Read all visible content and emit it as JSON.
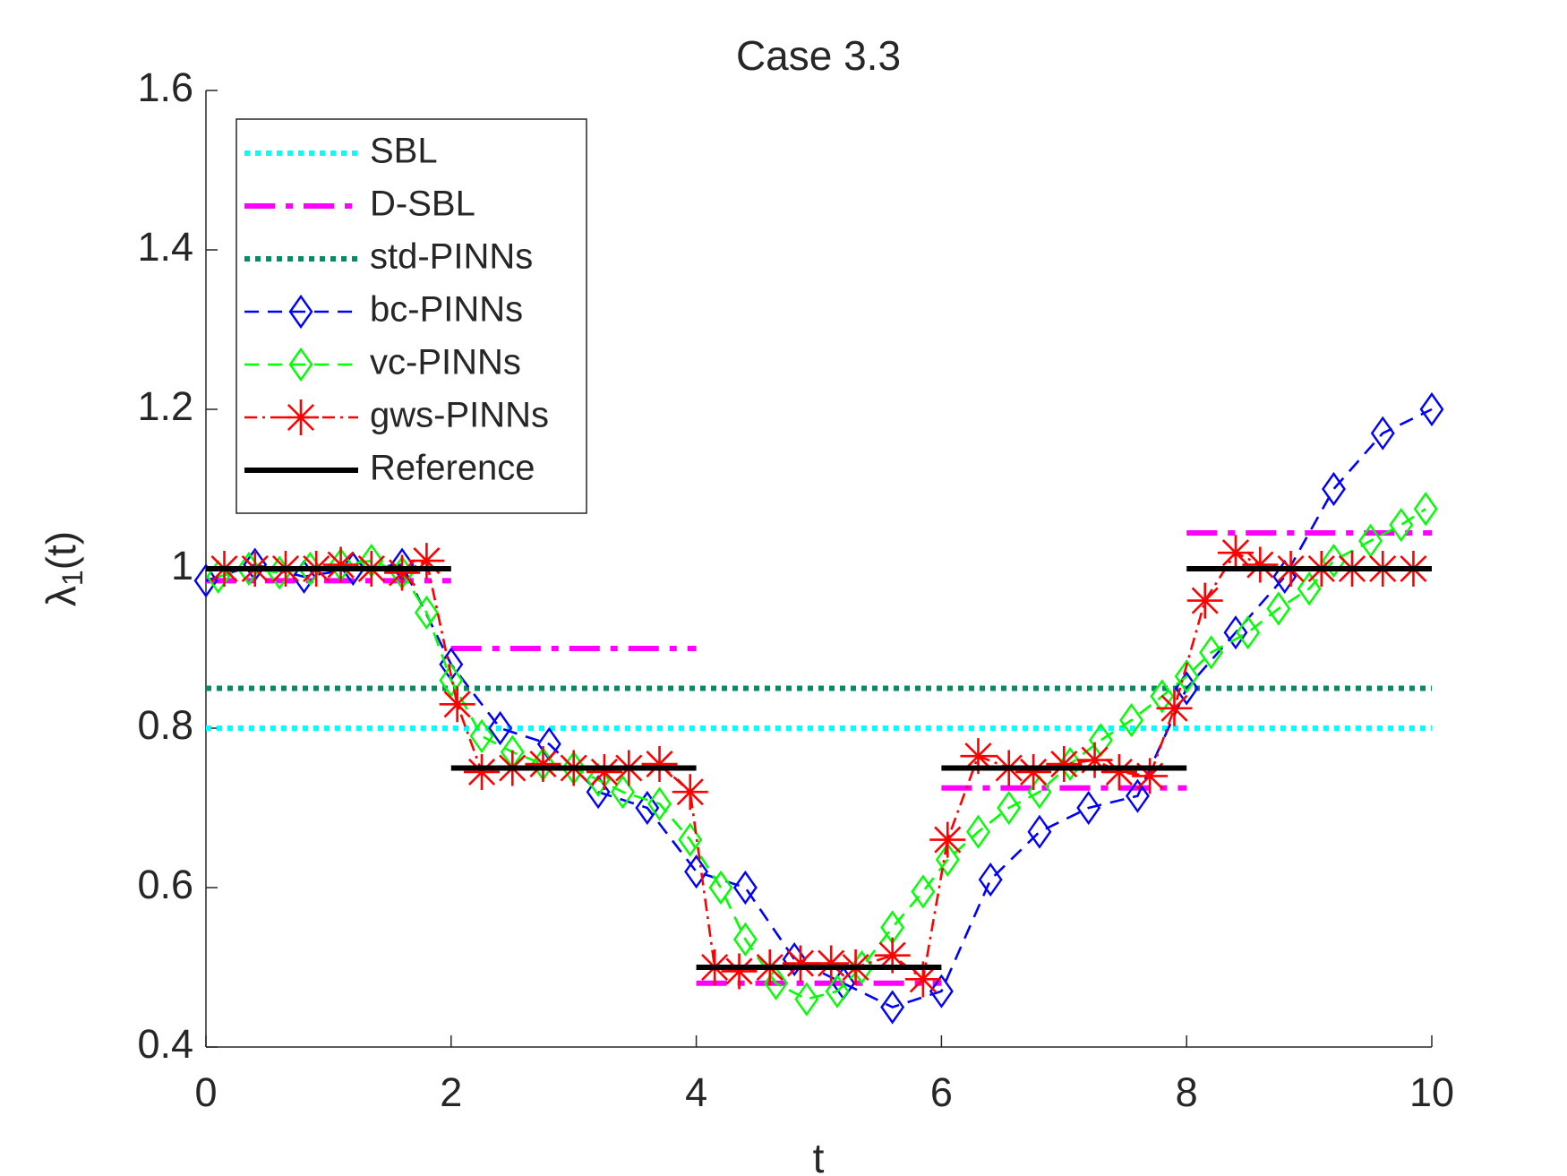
{
  "chart_data": {
    "type": "line",
    "title": "Case 3.3",
    "xlabel": "t",
    "ylabel": "λ1(t)",
    "xlim": [
      0,
      10
    ],
    "xticks": [
      0,
      2,
      4,
      6,
      8,
      10
    ],
    "ylim": [
      0.4,
      1.6
    ],
    "yticks": [
      0.4,
      0.6,
      0.8,
      1,
      1.2,
      1.4,
      1.6
    ],
    "grid": false,
    "legend_position": "upper left",
    "series": [
      {
        "name": "SBL",
        "color": "#00ffff",
        "linestyle": "dotted",
        "linewidth": "thick",
        "marker": "none",
        "x": [
          0,
          10
        ],
        "values": [
          0.8,
          0.8
        ]
      },
      {
        "name": "D-SBL",
        "color": "#ff00ff",
        "linestyle": "dashdot",
        "linewidth": "thick",
        "marker": "none",
        "x": [
          0,
          2,
          2,
          2,
          4,
          4,
          4,
          6,
          6,
          6,
          8,
          8,
          8,
          10
        ],
        "values": [
          0.985,
          0.985,
          null,
          0.9,
          0.9,
          null,
          0.48,
          0.48,
          null,
          0.725,
          0.725,
          null,
          1.045,
          1.045
        ]
      },
      {
        "name": "std-PINNs",
        "color": "#0a8a64",
        "linestyle": "dotted",
        "linewidth": "thick",
        "marker": "none",
        "x": [
          0,
          10
        ],
        "values": [
          0.85,
          0.85
        ]
      },
      {
        "name": "bc-PINNs",
        "color": "#0000ff",
        "linestyle": "dashed",
        "linewidth": "thin",
        "marker": "diamond",
        "x": [
          0,
          0.4,
          0.8,
          1.2,
          1.6,
          2.0,
          2.4,
          2.8,
          3.2,
          3.6,
          4.0,
          4.4,
          4.8,
          5.2,
          5.6,
          6.0,
          6.4,
          6.8,
          7.2,
          7.6,
          8.0,
          8.4,
          8.8,
          9.2,
          9.6,
          10.0
        ],
        "values": [
          0.985,
          1.005,
          0.99,
          1.0,
          1.005,
          0.88,
          0.8,
          0.78,
          0.72,
          0.7,
          0.62,
          0.6,
          0.51,
          0.48,
          0.45,
          0.47,
          0.61,
          0.67,
          0.7,
          0.715,
          0.85,
          0.92,
          0.99,
          1.1,
          1.17,
          1.2
        ]
      },
      {
        "name": "vc-PINNs",
        "color": "#00ff00",
        "linestyle": "dashed",
        "linewidth": "thin",
        "marker": "diamond",
        "x": [
          0.1,
          0.35,
          0.6,
          0.85,
          1.1,
          1.35,
          1.6,
          1.8,
          2.0,
          2.25,
          2.5,
          2.75,
          3.0,
          3.2,
          3.4,
          3.7,
          3.95,
          4.2,
          4.4,
          4.65,
          4.9,
          5.15,
          5.35,
          5.6,
          5.85,
          6.05,
          6.3,
          6.55,
          6.8,
          7.05,
          7.3,
          7.55,
          7.8,
          8.0,
          8.2,
          8.5,
          8.75,
          9.0,
          9.2,
          9.5,
          9.75,
          9.95
        ],
        "values": [
          0.99,
          1.0,
          0.995,
          1.0,
          1.005,
          1.01,
          0.995,
          0.945,
          0.86,
          0.79,
          0.77,
          0.755,
          0.75,
          0.735,
          0.72,
          0.705,
          0.66,
          0.6,
          0.535,
          0.48,
          0.46,
          0.47,
          0.5,
          0.55,
          0.595,
          0.635,
          0.67,
          0.7,
          0.72,
          0.755,
          0.785,
          0.81,
          0.84,
          0.865,
          0.895,
          0.92,
          0.95,
          0.975,
          1.01,
          1.035,
          1.055,
          1.075
        ]
      },
      {
        "name": "gws-PINNs",
        "color": "#ff0000",
        "linestyle": "dashdot",
        "linewidth": "thin",
        "marker": "asterisk",
        "x": [
          0.15,
          0.4,
          0.65,
          0.9,
          1.1,
          1.35,
          1.6,
          1.8,
          2.05,
          2.25,
          2.5,
          2.75,
          3.0,
          3.25,
          3.45,
          3.7,
          3.95,
          4.15,
          4.35,
          4.6,
          4.85,
          5.1,
          5.3,
          5.6,
          5.85,
          6.05,
          6.3,
          6.55,
          6.75,
          7.0,
          7.25,
          7.45,
          7.7,
          7.9,
          8.15,
          8.4,
          8.6,
          8.85,
          9.1,
          9.35,
          9.6,
          9.85
        ],
        "values": [
          1.0,
          1.0,
          1.0,
          1.0,
          1.005,
          1.0,
          0.995,
          1.01,
          0.83,
          0.745,
          0.75,
          0.755,
          0.75,
          0.745,
          0.75,
          0.755,
          0.72,
          0.5,
          0.495,
          0.5,
          0.505,
          0.505,
          0.5,
          0.515,
          0.485,
          0.66,
          0.765,
          0.75,
          0.745,
          0.755,
          0.76,
          0.745,
          0.74,
          0.825,
          0.96,
          1.02,
          1.005,
          1.0,
          1.0,
          1.0,
          1.0,
          1.0
        ]
      },
      {
        "name": "Reference",
        "color": "#000000",
        "linestyle": "solid",
        "linewidth": "thick",
        "marker": "none",
        "x": [
          0,
          2,
          2,
          2,
          4,
          4,
          4,
          6,
          6,
          6,
          8,
          8,
          8,
          10
        ],
        "values": [
          1,
          1,
          null,
          0.75,
          0.75,
          null,
          0.5,
          0.5,
          null,
          0.75,
          0.75,
          null,
          1,
          1
        ]
      }
    ]
  }
}
